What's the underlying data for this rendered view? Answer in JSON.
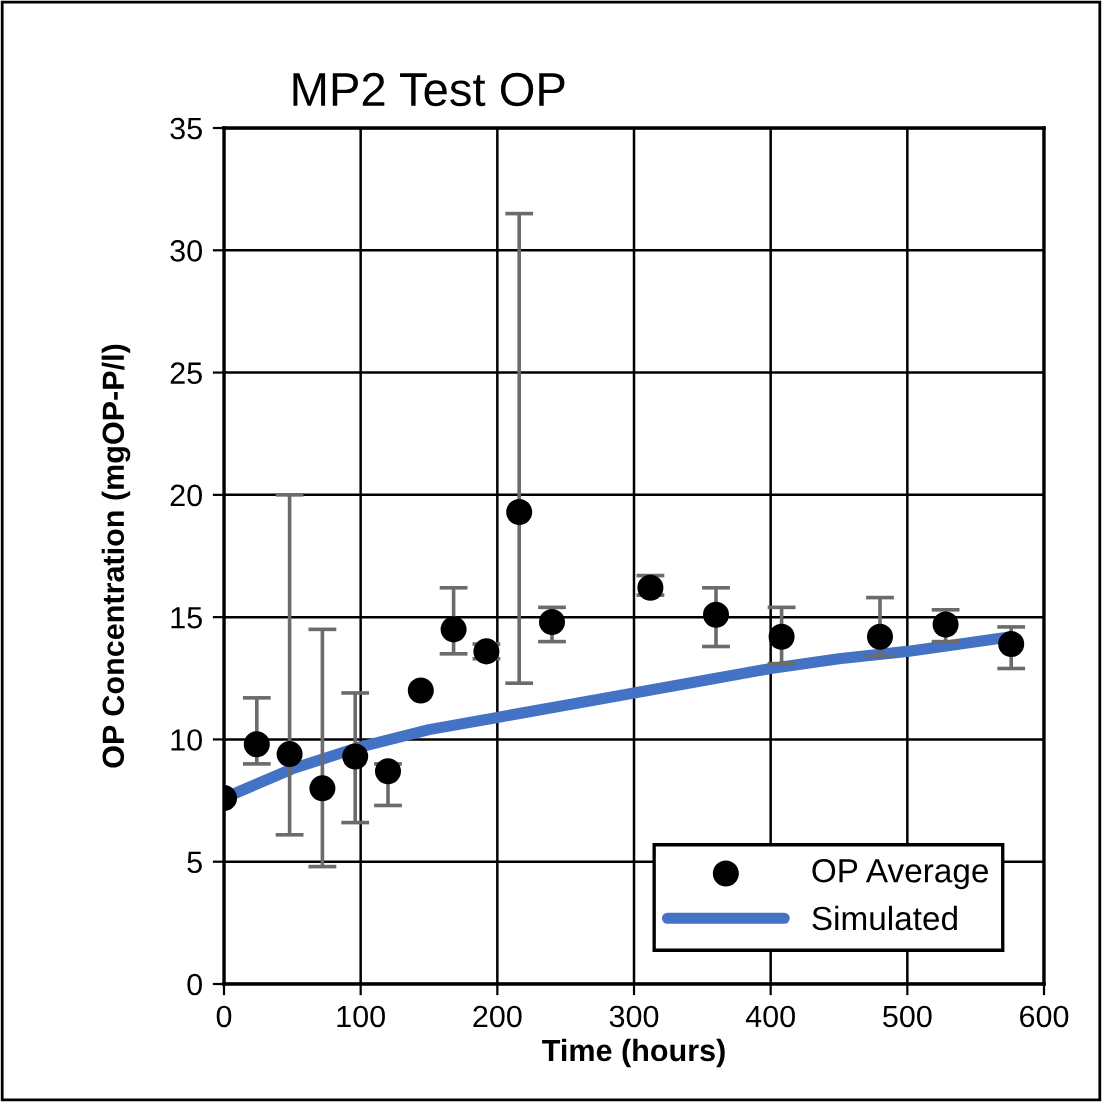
{
  "chart_data": {
    "type": "scatter",
    "title": "MP2 Test OP",
    "xlabel": "Time (hours)",
    "ylabel": "OP Concentration (mgOP-P/l)",
    "xlim": [
      0,
      600
    ],
    "xticks": [
      0,
      100,
      200,
      300,
      400,
      500,
      600
    ],
    "ylim": [
      0,
      35
    ],
    "yticks": [
      0,
      5,
      10,
      15,
      20,
      25,
      30,
      35
    ],
    "grid": true,
    "legend": "bottom right",
    "series": [
      {
        "name": "OP Average",
        "marker": "circle",
        "color": "#000000",
        "x": [
          0,
          24,
          48,
          72,
          96,
          120,
          144,
          168,
          192,
          216,
          240,
          312,
          360,
          408,
          480,
          528,
          576
        ],
        "values": [
          7.6,
          9.8,
          9.4,
          8.0,
          9.3,
          8.7,
          12.0,
          14.5,
          13.6,
          19.3,
          14.8,
          16.2,
          15.1,
          14.2,
          14.2,
          14.7,
          13.9
        ],
        "errors": [
          null,
          [
            9.0,
            11.7
          ],
          [
            6.1,
            20.0
          ],
          [
            4.8,
            14.5
          ],
          [
            6.6,
            11.9
          ],
          [
            7.3,
            9.0
          ],
          null,
          [
            13.5,
            16.2
          ],
          [
            13.3,
            13.9
          ],
          [
            12.3,
            31.5
          ],
          [
            14.0,
            15.4
          ],
          [
            15.9,
            16.7
          ],
          [
            13.8,
            16.2
          ],
          [
            13.1,
            15.4
          ],
          [
            13.4,
            15.8
          ],
          [
            14.0,
            15.3
          ],
          [
            12.9,
            14.6
          ]
        ]
      },
      {
        "name": "Simulated",
        "type": "line",
        "marker": "none",
        "line_style": "solid",
        "color": "#4472c4",
        "x": [
          0,
          25,
          50,
          100,
          150,
          200,
          250,
          300,
          350,
          400,
          450,
          500,
          576
        ],
        "values": [
          7.6,
          8.2,
          8.8,
          9.7,
          10.4,
          10.9,
          11.4,
          11.9,
          12.4,
          12.9,
          13.3,
          13.6,
          14.2
        ]
      }
    ]
  }
}
